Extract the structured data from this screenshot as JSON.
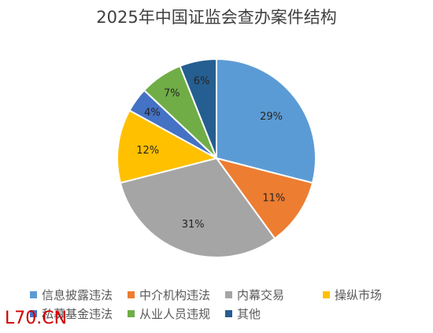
{
  "chart_data": {
    "type": "pie",
    "title": "2025年中国证监会查办案件结构",
    "categories": [
      "信息披露违法",
      "中介机构违法",
      "内幕交易",
      "操纵市场",
      "私募基金违法",
      "从业人员违规",
      "其他"
    ],
    "values": [
      29,
      11,
      31,
      12,
      4,
      7,
      6
    ],
    "labels": [
      "29%",
      "11%",
      "31%",
      "12%",
      "4%",
      "7%",
      "6%"
    ],
    "colors": [
      "#5b9bd5",
      "#ed7d31",
      "#a5a5a5",
      "#ffc000",
      "#4472c4",
      "#70ad47",
      "#255e91"
    ],
    "legend_position": "bottom"
  },
  "watermark": "L70.CN"
}
